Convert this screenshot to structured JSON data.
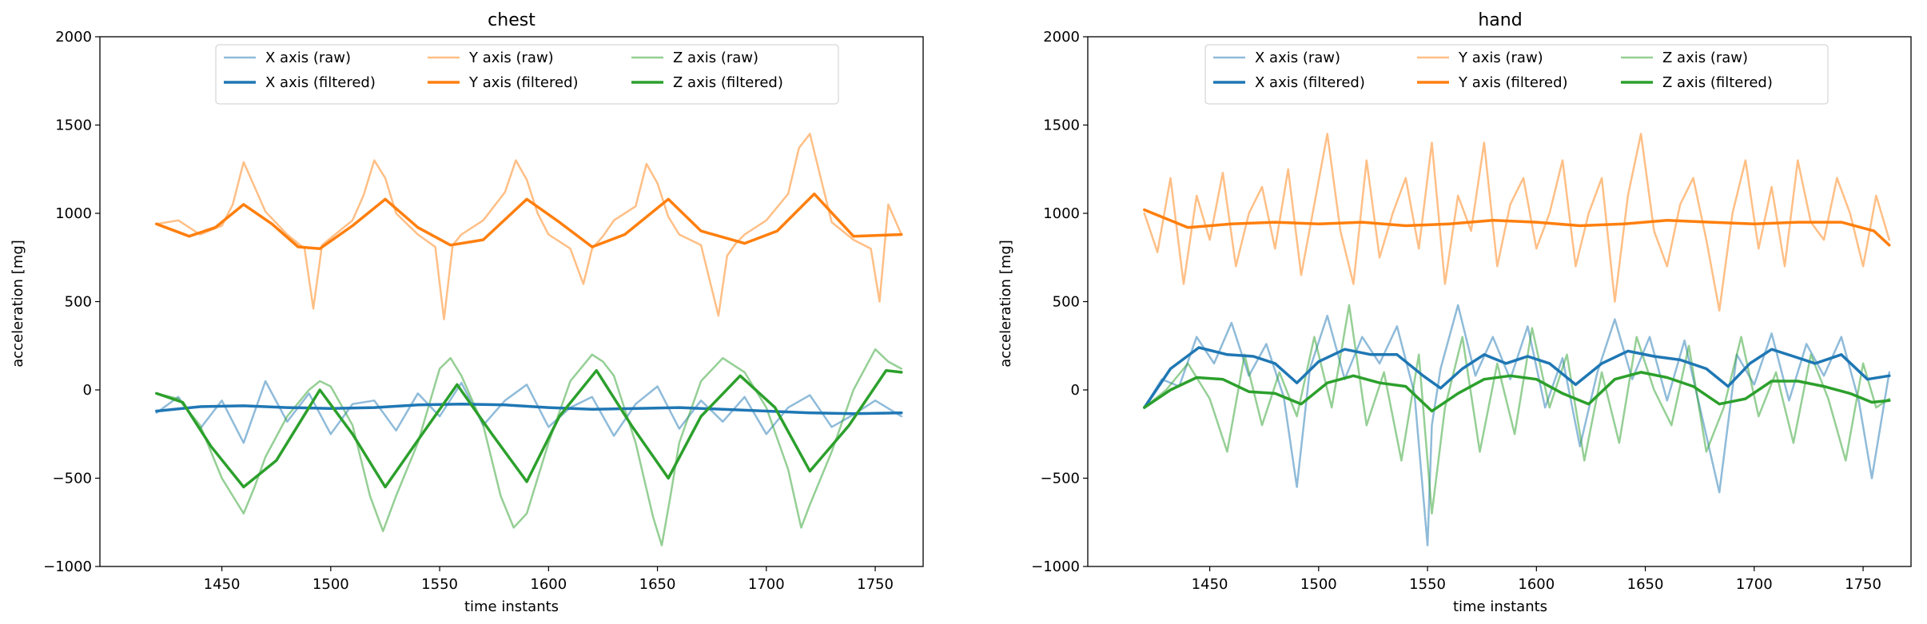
{
  "chart_data": [
    {
      "type": "line",
      "title": "chest",
      "xlabel": "time instants",
      "ylabel": "acceleration [mg]",
      "xlim": [
        1394,
        1772
      ],
      "ylim": [
        -1000,
        2000
      ],
      "xticks": [
        1450,
        1500,
        1550,
        1600,
        1650,
        1700,
        1750
      ],
      "yticks": [
        -1000,
        -500,
        0,
        500,
        1000,
        1500,
        2000
      ],
      "grid": false,
      "legend": "top-center, 3 columns",
      "series": [
        {
          "name": "X axis (raw)",
          "color": "#1f77b4",
          "alpha": 0.5,
          "width": 2.5,
          "x": [
            1420,
            1430,
            1440,
            1450,
            1460,
            1470,
            1480,
            1490,
            1500,
            1510,
            1520,
            1530,
            1540,
            1550,
            1560,
            1570,
            1580,
            1590,
            1600,
            1610,
            1620,
            1630,
            1640,
            1650,
            1660,
            1670,
            1680,
            1690,
            1700,
            1710,
            1720,
            1730,
            1740,
            1750,
            1762
          ],
          "y": [
            -130,
            -40,
            -220,
            -60,
            -300,
            50,
            -180,
            -20,
            -250,
            -80,
            -60,
            -230,
            -20,
            -150,
            40,
            -200,
            -60,
            30,
            -210,
            -100,
            -40,
            -260,
            -80,
            20,
            -220,
            -60,
            -180,
            -40,
            -250,
            -100,
            -30,
            -210,
            -140,
            -60,
            -150
          ]
        },
        {
          "name": "Y axis (raw)",
          "color": "#ff7f0e",
          "alpha": 0.5,
          "width": 2.5,
          "x": [
            1420,
            1430,
            1440,
            1450,
            1455,
            1460,
            1465,
            1470,
            1480,
            1488,
            1492,
            1496,
            1500,
            1510,
            1515,
            1520,
            1525,
            1530,
            1540,
            1548,
            1552,
            1556,
            1560,
            1570,
            1580,
            1585,
            1590,
            1595,
            1600,
            1610,
            1616,
            1620,
            1625,
            1630,
            1640,
            1645,
            1650,
            1655,
            1660,
            1670,
            1678,
            1682,
            1686,
            1690,
            1700,
            1710,
            1715,
            1720,
            1725,
            1730,
            1740,
            1748,
            1752,
            1756,
            1762
          ],
          "y": [
            940,
            960,
            880,
            930,
            1050,
            1290,
            1150,
            1010,
            880,
            800,
            460,
            820,
            860,
            960,
            1100,
            1300,
            1200,
            1000,
            880,
            810,
            400,
            820,
            880,
            960,
            1120,
            1300,
            1190,
            1000,
            880,
            800,
            600,
            800,
            870,
            960,
            1040,
            1280,
            1170,
            980,
            880,
            820,
            420,
            760,
            830,
            880,
            960,
            1110,
            1370,
            1450,
            1200,
            950,
            850,
            800,
            500,
            1050,
            880
          ]
        },
        {
          "name": "Z axis (raw)",
          "color": "#2ca02c",
          "alpha": 0.5,
          "width": 2.5,
          "x": [
            1420,
            1430,
            1440,
            1450,
            1455,
            1460,
            1465,
            1470,
            1480,
            1490,
            1495,
            1500,
            1510,
            1518,
            1524,
            1530,
            1540,
            1550,
            1555,
            1560,
            1570,
            1578,
            1584,
            1590,
            1600,
            1610,
            1620,
            1625,
            1630,
            1640,
            1648,
            1652,
            1656,
            1660,
            1670,
            1680,
            1690,
            1700,
            1710,
            1716,
            1720,
            1730,
            1740,
            1750,
            1756,
            1762
          ],
          "y": [
            -20,
            -50,
            -200,
            -500,
            -600,
            -700,
            -550,
            -380,
            -150,
            0,
            50,
            20,
            -200,
            -600,
            -800,
            -600,
            -300,
            120,
            180,
            80,
            -200,
            -600,
            -780,
            -700,
            -300,
            50,
            200,
            160,
            80,
            -300,
            -720,
            -880,
            -600,
            -300,
            50,
            180,
            100,
            -100,
            -450,
            -780,
            -650,
            -350,
            0,
            230,
            160,
            120
          ]
        },
        {
          "name": "X axis (filtered)",
          "color": "#1f77b4",
          "alpha": 1,
          "width": 3.5,
          "x": [
            1420,
            1440,
            1460,
            1480,
            1500,
            1520,
            1540,
            1560,
            1580,
            1600,
            1620,
            1640,
            1660,
            1680,
            1700,
            1720,
            1740,
            1762
          ],
          "y": [
            -120,
            -95,
            -90,
            -100,
            -105,
            -100,
            -85,
            -80,
            -85,
            -100,
            -110,
            -105,
            -100,
            -110,
            -120,
            -130,
            -135,
            -130
          ]
        },
        {
          "name": "Y axis (filtered)",
          "color": "#ff7f0e",
          "alpha": 1,
          "width": 3.5,
          "x": [
            1420,
            1435,
            1447,
            1460,
            1473,
            1485,
            1495,
            1510,
            1525,
            1540,
            1555,
            1570,
            1590,
            1605,
            1620,
            1635,
            1655,
            1670,
            1690,
            1705,
            1722,
            1740,
            1762
          ],
          "y": [
            940,
            870,
            920,
            1050,
            940,
            810,
            800,
            930,
            1080,
            920,
            820,
            850,
            1080,
            950,
            810,
            880,
            1080,
            900,
            830,
            900,
            1110,
            870,
            880
          ]
        },
        {
          "name": "Z axis (filtered)",
          "color": "#2ca02c",
          "alpha": 1,
          "width": 3.5,
          "x": [
            1420,
            1432,
            1445,
            1460,
            1475,
            1495,
            1510,
            1525,
            1542,
            1558,
            1574,
            1590,
            1605,
            1622,
            1638,
            1655,
            1670,
            1688,
            1704,
            1720,
            1738,
            1755,
            1762
          ],
          "y": [
            -20,
            -70,
            -320,
            -550,
            -400,
            0,
            -250,
            -550,
            -250,
            30,
            -250,
            -520,
            -150,
            110,
            -200,
            -500,
            -150,
            80,
            -100,
            -460,
            -200,
            110,
            100
          ]
        }
      ]
    },
    {
      "type": "line",
      "title": "hand",
      "xlabel": "time instants",
      "ylabel": "acceleration [mg]",
      "xlim": [
        1394,
        1772
      ],
      "ylim": [
        -1000,
        2000
      ],
      "xticks": [
        1450,
        1500,
        1550,
        1600,
        1650,
        1700,
        1750
      ],
      "yticks": [
        -1000,
        -500,
        0,
        500,
        1000,
        1500,
        2000
      ],
      "grid": false,
      "legend": "top-center, 3 columns",
      "series": [
        {
          "name": "X axis (raw)",
          "color": "#1f77b4",
          "alpha": 0.5,
          "width": 2.5,
          "x": [
            1420,
            1428,
            1436,
            1444,
            1452,
            1460,
            1468,
            1476,
            1484,
            1490,
            1496,
            1504,
            1512,
            1520,
            1528,
            1536,
            1544,
            1550,
            1552,
            1556,
            1564,
            1572,
            1580,
            1588,
            1596,
            1604,
            1612,
            1620,
            1628,
            1636,
            1644,
            1652,
            1660,
            1668,
            1676,
            1684,
            1692,
            1700,
            1708,
            1716,
            1724,
            1732,
            1740,
            1748,
            1754,
            1762
          ],
          "y": [
            -100,
            60,
            20,
            300,
            150,
            380,
            80,
            260,
            -40,
            -550,
            120,
            420,
            60,
            300,
            150,
            360,
            -20,
            -880,
            -200,
            120,
            480,
            80,
            300,
            60,
            360,
            -100,
            180,
            -320,
            100,
            400,
            60,
            300,
            -60,
            280,
            -150,
            -580,
            200,
            30,
            320,
            -60,
            260,
            80,
            300,
            -60,
            -500,
            100
          ]
        },
        {
          "name": "Y axis (raw)",
          "color": "#ff7f0e",
          "alpha": 0.5,
          "width": 2.5,
          "x": [
            1420,
            1426,
            1432,
            1438,
            1444,
            1450,
            1456,
            1462,
            1468,
            1474,
            1480,
            1486,
            1492,
            1498,
            1504,
            1510,
            1516,
            1522,
            1528,
            1534,
            1540,
            1546,
            1552,
            1558,
            1564,
            1570,
            1576,
            1582,
            1588,
            1594,
            1600,
            1606,
            1612,
            1618,
            1624,
            1630,
            1636,
            1642,
            1648,
            1654,
            1660,
            1666,
            1672,
            1678,
            1684,
            1690,
            1696,
            1702,
            1708,
            1714,
            1720,
            1726,
            1732,
            1738,
            1744,
            1750,
            1756,
            1762
          ],
          "y": [
            1000,
            780,
            1200,
            600,
            1100,
            850,
            1230,
            700,
            1000,
            1150,
            800,
            1250,
            650,
            1050,
            1450,
            900,
            600,
            1300,
            750,
            1000,
            1200,
            800,
            1400,
            600,
            1100,
            900,
            1400,
            700,
            1050,
            1200,
            800,
            1000,
            1300,
            700,
            1000,
            1200,
            500,
            1100,
            1450,
            900,
            700,
            1050,
            1200,
            850,
            450,
            1000,
            1300,
            800,
            1150,
            700,
            1300,
            950,
            850,
            1200,
            1000,
            700,
            1100,
            850
          ]
        },
        {
          "name": "Z axis (raw)",
          "color": "#2ca02c",
          "alpha": 0.5,
          "width": 2.5,
          "x": [
            1420,
            1430,
            1440,
            1450,
            1458,
            1466,
            1474,
            1482,
            1490,
            1498,
            1506,
            1514,
            1522,
            1530,
            1538,
            1546,
            1552,
            1558,
            1566,
            1574,
            1582,
            1590,
            1598,
            1606,
            1614,
            1622,
            1630,
            1638,
            1646,
            1654,
            1662,
            1670,
            1678,
            1686,
            1694,
            1702,
            1710,
            1718,
            1726,
            1734,
            1742,
            1750,
            1756,
            1762
          ],
          "y": [
            -100,
            0,
            150,
            -50,
            -350,
            200,
            -200,
            100,
            -150,
            300,
            -100,
            480,
            -200,
            100,
            -400,
            200,
            -700,
            -100,
            300,
            -350,
            150,
            -250,
            350,
            -100,
            200,
            -400,
            100,
            -300,
            300,
            0,
            -200,
            250,
            -350,
            -100,
            300,
            -150,
            100,
            -300,
            200,
            -50,
            -400,
            150,
            -100,
            -50
          ]
        },
        {
          "name": "X axis (filtered)",
          "color": "#1f77b4",
          "alpha": 1,
          "width": 3.5,
          "x": [
            1420,
            1432,
            1445,
            1458,
            1470,
            1480,
            1490,
            1500,
            1512,
            1524,
            1536,
            1548,
            1556,
            1566,
            1576,
            1586,
            1596,
            1606,
            1618,
            1630,
            1642,
            1654,
            1666,
            1678,
            1688,
            1698,
            1708,
            1718,
            1728,
            1740,
            1752,
            1762
          ],
          "y": [
            -100,
            120,
            240,
            200,
            190,
            150,
            40,
            160,
            230,
            200,
            200,
            80,
            10,
            120,
            200,
            150,
            190,
            150,
            30,
            150,
            220,
            190,
            170,
            120,
            20,
            150,
            230,
            190,
            150,
            200,
            60,
            80
          ]
        },
        {
          "name": "Y axis (filtered)",
          "color": "#ff7f0e",
          "alpha": 1,
          "width": 3.5,
          "x": [
            1420,
            1440,
            1460,
            1480,
            1500,
            1520,
            1540,
            1560,
            1580,
            1600,
            1620,
            1640,
            1660,
            1680,
            1700,
            1720,
            1740,
            1755,
            1762
          ],
          "y": [
            1020,
            920,
            940,
            950,
            940,
            950,
            930,
            940,
            960,
            950,
            930,
            940,
            960,
            950,
            940,
            950,
            950,
            900,
            820
          ]
        },
        {
          "name": "Z axis (filtered)",
          "color": "#2ca02c",
          "alpha": 1,
          "width": 3.5,
          "x": [
            1420,
            1432,
            1444,
            1456,
            1468,
            1480,
            1492,
            1504,
            1516,
            1528,
            1540,
            1552,
            1564,
            1576,
            1588,
            1600,
            1612,
            1624,
            1636,
            1648,
            1660,
            1672,
            1684,
            1696,
            1708,
            1720,
            1732,
            1744,
            1754,
            1762
          ],
          "y": [
            -100,
            0,
            70,
            60,
            -10,
            -20,
            -80,
            40,
            80,
            40,
            20,
            -120,
            -20,
            60,
            80,
            60,
            -20,
            -80,
            60,
            100,
            70,
            20,
            -80,
            -50,
            50,
            50,
            20,
            -20,
            -70,
            -60
          ]
        }
      ]
    }
  ]
}
